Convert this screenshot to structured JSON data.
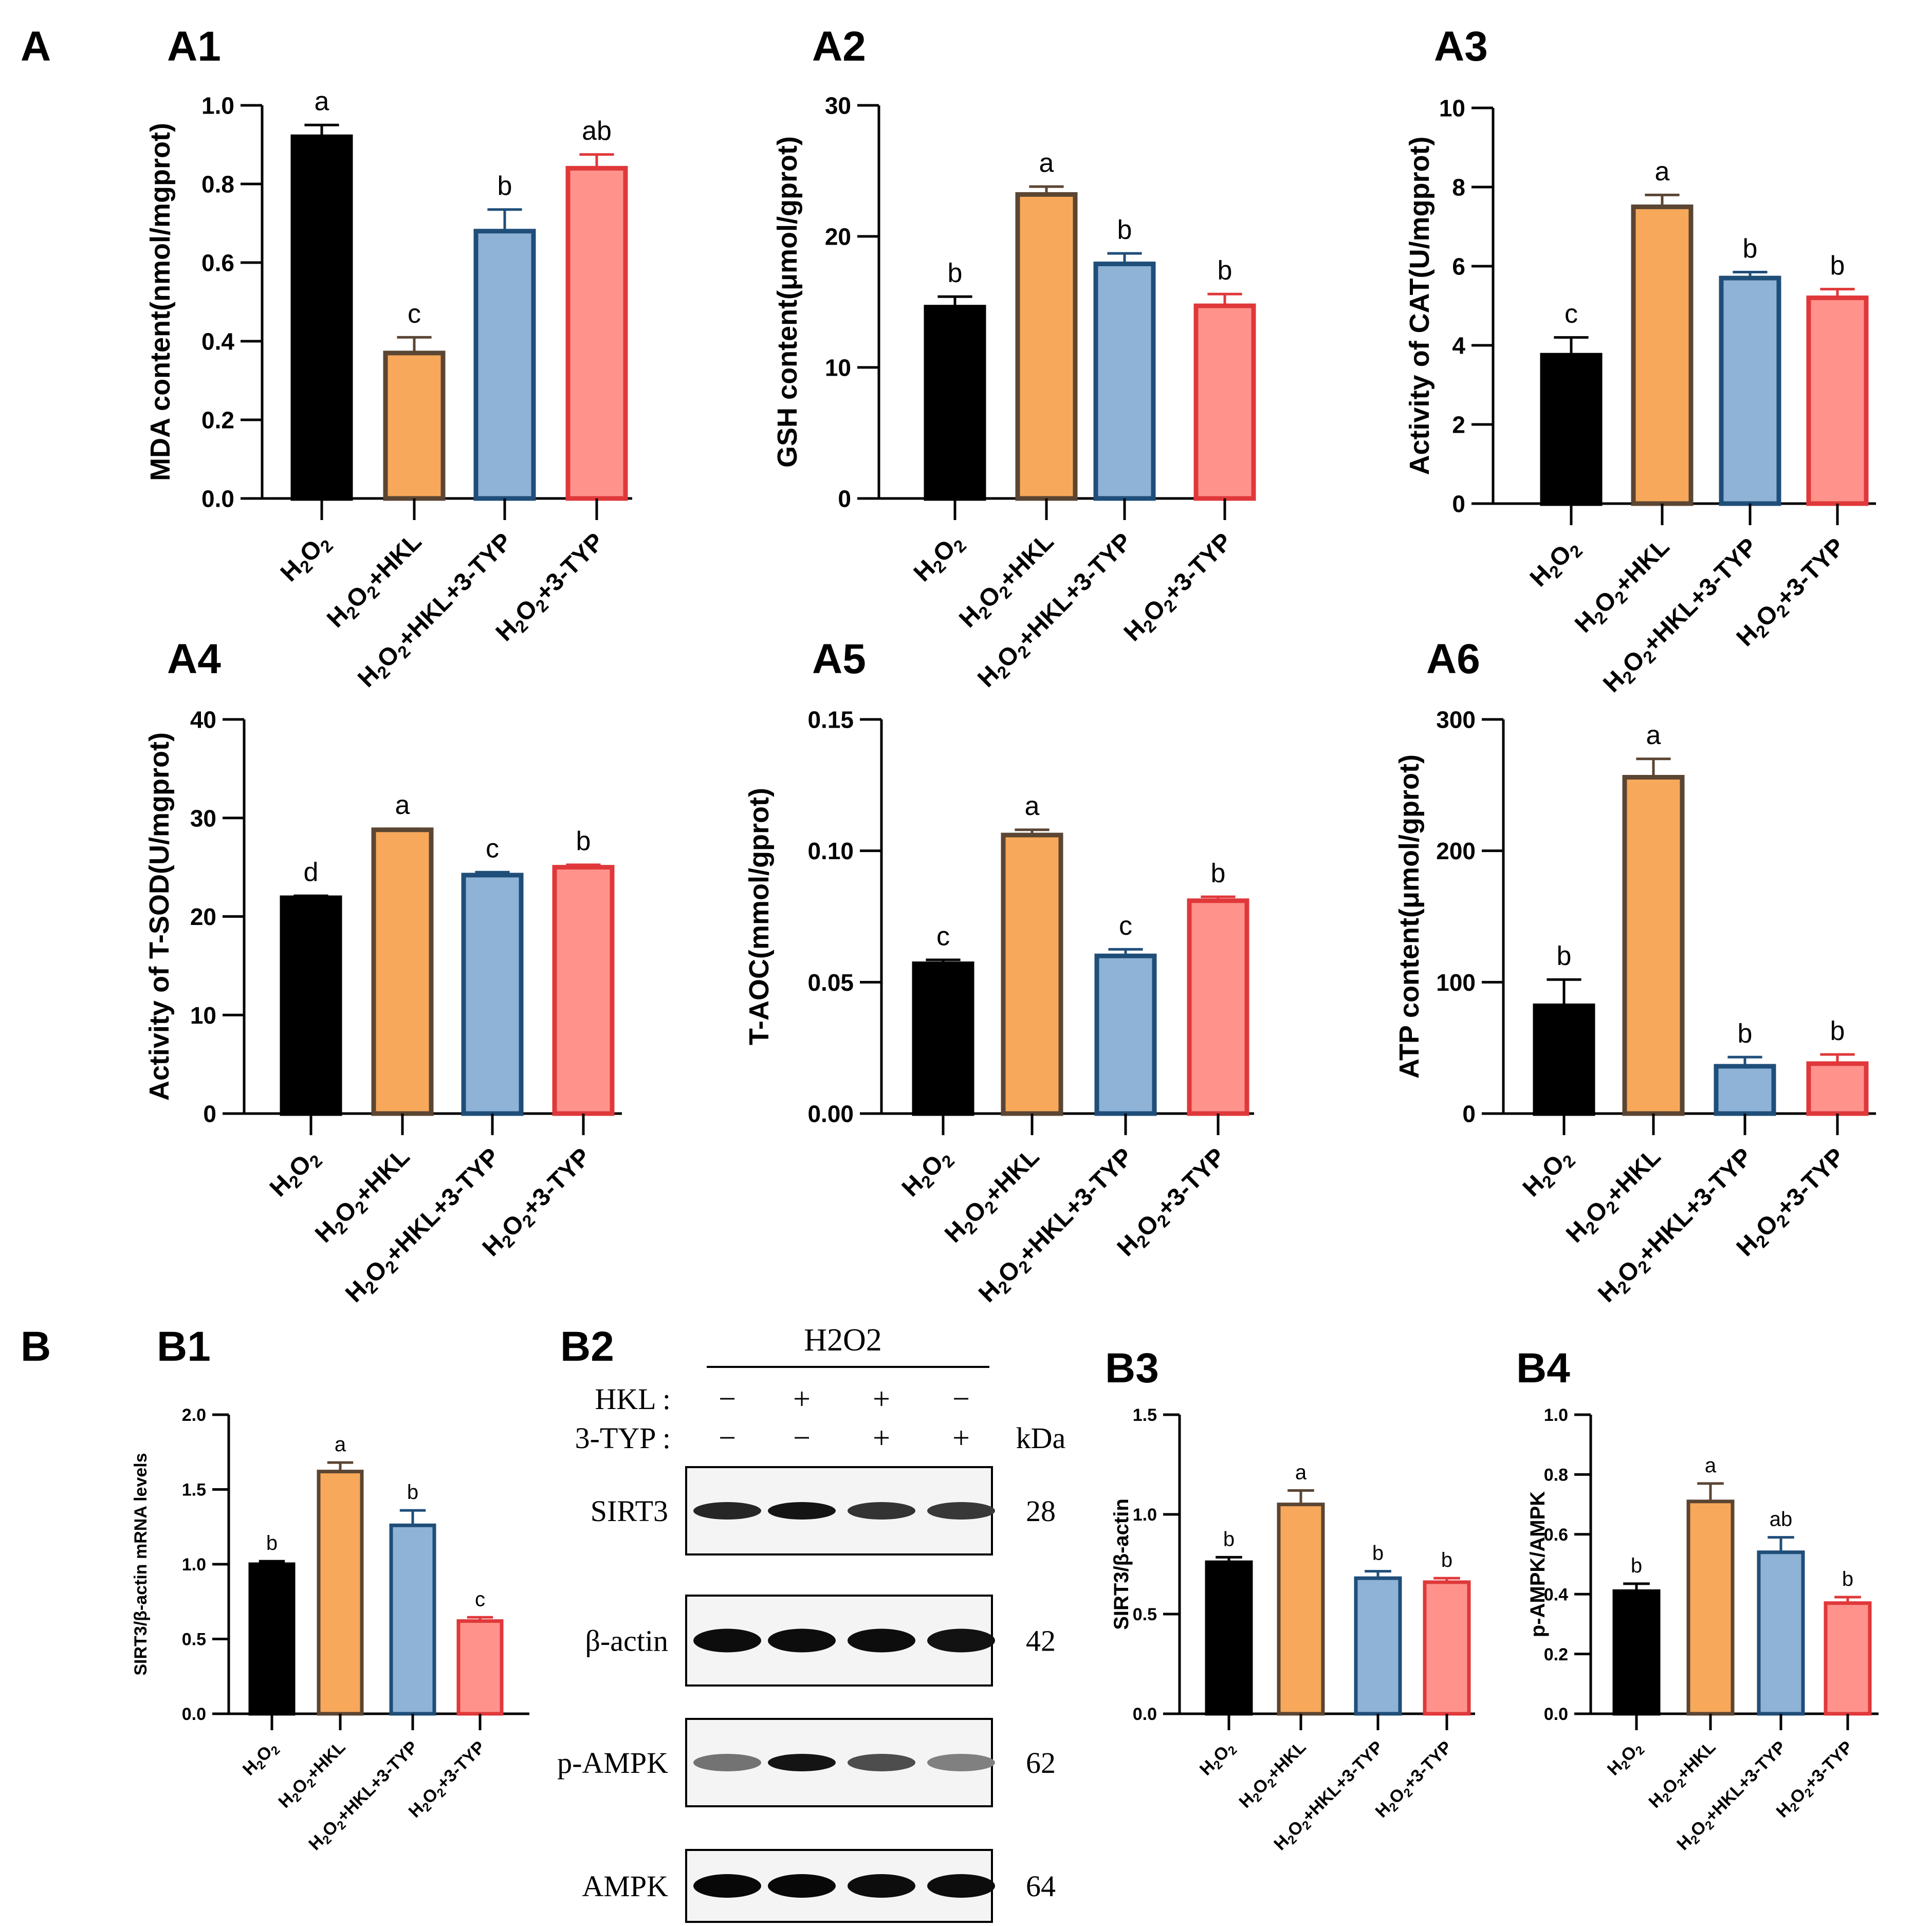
{
  "colors": {
    "H2O2": {
      "fill": "#000000",
      "stroke": "#000000",
      "err": "#000000"
    },
    "H2O2+HKL": {
      "fill": "#F7A85A",
      "stroke": "#5B4533",
      "err": "#5B4533"
    },
    "H2O2+HKL+3-TYP": {
      "fill": "#8FB3D6",
      "stroke": "#1F4E79",
      "err": "#1F4E79"
    },
    "H2O2+3-TYP": {
      "fill": "#FF938C",
      "stroke": "#E0383A",
      "err": "#E0383A"
    }
  },
  "panel_labels": {
    "A": "A",
    "B": "B"
  },
  "subpanel_labels": {
    "A1": "A1",
    "A2": "A2",
    "A3": "A3",
    "A4": "A4",
    "A5": "A5",
    "A6": "A6",
    "B1": "B1",
    "B2": "B2",
    "B3": "B3",
    "B4": "B4"
  },
  "chart_data": [
    {
      "id": "A1",
      "type": "bar",
      "ylabel": "MDA content(nmol/mgprot)",
      "ylim": [
        0,
        1.0
      ],
      "yticks": [
        "0.0",
        "0.2",
        "0.4",
        "0.6",
        "0.8",
        "1.0"
      ],
      "categories": [
        "H2O2",
        "H2O2+HKL",
        "H2O2+HKL+3-TYP",
        "H2O2+3-TYP"
      ],
      "values": [
        0.92,
        0.37,
        0.68,
        0.84
      ],
      "errors": [
        0.03,
        0.04,
        0.055,
        0.035
      ],
      "significance": [
        "a",
        "c",
        "b",
        "ab"
      ]
    },
    {
      "id": "A2",
      "type": "bar",
      "ylabel": "GSH content(μmol/gprot)",
      "ylim": [
        0,
        30
      ],
      "yticks": [
        "0",
        "10",
        "20",
        "30"
      ],
      "categories": [
        "H2O2",
        "H2O2+HKL",
        "H2O2+HKL+3-TYP",
        "H2O2+3-TYP"
      ],
      "values": [
        14.6,
        23.2,
        17.9,
        14.7
      ],
      "errors": [
        0.8,
        0.6,
        0.8,
        0.9
      ],
      "significance": [
        "b",
        "a",
        "b",
        "b"
      ]
    },
    {
      "id": "A3",
      "type": "bar",
      "ylabel": "Activity of CAT(U/mgprot)",
      "ylim": [
        0,
        10
      ],
      "yticks": [
        "0",
        "2",
        "4",
        "6",
        "8",
        "10"
      ],
      "categories": [
        "H2O2",
        "H2O2+HKL",
        "H2O2+HKL+3-TYP",
        "H2O2+3-TYP"
      ],
      "values": [
        3.75,
        7.5,
        5.7,
        5.2
      ],
      "errors": [
        0.45,
        0.3,
        0.15,
        0.22
      ],
      "significance": [
        "c",
        "a",
        "b",
        "b"
      ]
    },
    {
      "id": "A4",
      "type": "bar",
      "ylabel": "Activity of T-SOD(U/mgprot)",
      "ylim": [
        0,
        40
      ],
      "yticks": [
        "0",
        "10",
        "20",
        "30",
        "40"
      ],
      "categories": [
        "H2O2",
        "H2O2+HKL",
        "H2O2+HKL+3-TYP",
        "H2O2+3-TYP"
      ],
      "values": [
        21.9,
        28.8,
        24.2,
        25.0
      ],
      "errors": [
        0.2,
        0.1,
        0.3,
        0.25
      ],
      "significance": [
        "d",
        "a",
        "c",
        "b"
      ]
    },
    {
      "id": "A5",
      "type": "bar",
      "ylabel": "T-AOC(mmol/gprot)",
      "ylim": [
        0,
        0.15
      ],
      "yticks": [
        "0.00",
        "0.05",
        "0.10",
        "0.15"
      ],
      "categories": [
        "H2O2",
        "H2O2+HKL",
        "H2O2+HKL+3-TYP",
        "H2O2+3-TYP"
      ],
      "values": [
        0.057,
        0.106,
        0.06,
        0.081
      ],
      "errors": [
        0.0015,
        0.002,
        0.0025,
        0.0015
      ],
      "significance": [
        "c",
        "a",
        "c",
        "b"
      ]
    },
    {
      "id": "A6",
      "type": "bar",
      "ylabel": "ATP content(μmol/gprot)",
      "ylim": [
        0,
        300
      ],
      "yticks": [
        "0",
        "100",
        "200",
        "300"
      ],
      "categories": [
        "H2O2",
        "H2O2+HKL",
        "H2O2+HKL+3-TYP",
        "H2O2+3-TYP"
      ],
      "values": [
        82,
        256,
        36,
        38
      ],
      "errors": [
        20,
        14,
        7,
        7
      ],
      "significance": [
        "b",
        "a",
        "b",
        "b"
      ]
    },
    {
      "id": "B1",
      "type": "bar",
      "ylabel": "SIRT3/β-actin mRNA levels",
      "ylim": [
        0,
        2.0
      ],
      "yticks": [
        "0.0",
        "0.5",
        "1.0",
        "1.5",
        "2.0"
      ],
      "categories": [
        "H2O2",
        "H2O2+HKL",
        "H2O2+HKL+3-TYP",
        "H2O2+3-TYP"
      ],
      "values": [
        1.0,
        1.62,
        1.26,
        0.62
      ],
      "errors": [
        0.02,
        0.06,
        0.1,
        0.025
      ],
      "significance": [
        "b",
        "a",
        "b",
        "c"
      ]
    },
    {
      "id": "B3",
      "type": "bar",
      "ylabel": "SIRT3/β-actin",
      "ylim": [
        0,
        1.5
      ],
      "yticks": [
        "0.0",
        "0.5",
        "1.0",
        "1.5"
      ],
      "categories": [
        "H2O2",
        "H2O2+HKL",
        "H2O2+HKL+3-TYP",
        "H2O2+3-TYP"
      ],
      "values": [
        0.76,
        1.05,
        0.68,
        0.66
      ],
      "errors": [
        0.025,
        0.07,
        0.035,
        0.02
      ],
      "significance": [
        "b",
        "a",
        "b",
        "b"
      ]
    },
    {
      "id": "B4",
      "type": "bar",
      "ylabel": "p-AMPK/AMPK",
      "ylim": [
        0,
        1.0
      ],
      "yticks": [
        "0.0",
        "0.2",
        "0.4",
        "0.6",
        "0.8",
        "1.0"
      ],
      "categories": [
        "H2O2",
        "H2O2+HKL",
        "H2O2+HKL+3-TYP",
        "H2O2+3-TYP"
      ],
      "values": [
        0.41,
        0.71,
        0.54,
        0.37
      ],
      "errors": [
        0.025,
        0.06,
        0.05,
        0.02
      ],
      "significance": [
        "b",
        "a",
        "ab",
        "b"
      ]
    }
  ],
  "blot": {
    "treatment": "H2O2",
    "rows": [
      {
        "label": "HKL :",
        "signs": [
          "−",
          "+",
          "+",
          "−"
        ]
      },
      {
        "label": "3-TYP :",
        "signs": [
          "−",
          "−",
          "+",
          "+"
        ]
      }
    ],
    "kda_label": "kDa",
    "proteins": [
      {
        "name": "SIRT3",
        "kda": "28",
        "intensity": [
          0.85,
          0.92,
          0.8,
          0.78
        ]
      },
      {
        "name": "β-actin",
        "kda": "42",
        "intensity": [
          0.95,
          0.95,
          0.95,
          0.93
        ]
      },
      {
        "name": "p-AMPK",
        "kda": "62",
        "intensity": [
          0.55,
          0.92,
          0.7,
          0.5
        ]
      },
      {
        "name": "AMPK",
        "kda": "64",
        "intensity": [
          0.97,
          0.97,
          0.95,
          0.95
        ]
      }
    ]
  }
}
